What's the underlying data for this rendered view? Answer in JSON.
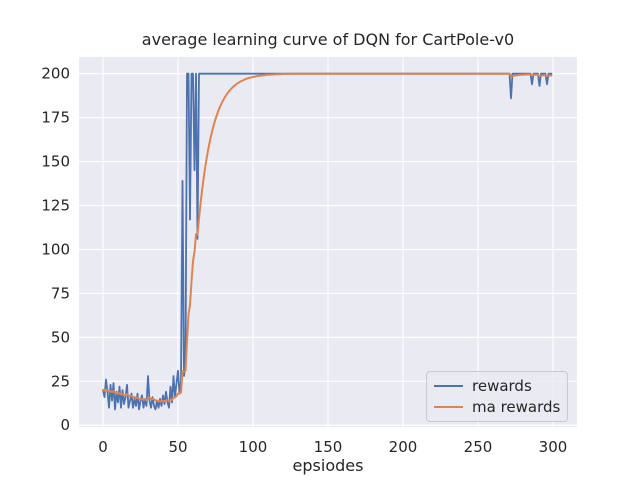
{
  "figure": {
    "background": "#ffffff"
  },
  "chart_data": {
    "type": "line",
    "title": "average learning curve of DQN for CartPole-v0",
    "xlabel": "epsiodes",
    "ylabel": "",
    "grid": true,
    "legend_position": "lower right",
    "axes_background": "#eaeaf2",
    "grid_color": "#ffffff",
    "text_color": "#262626",
    "xlim": [
      -16,
      316
    ],
    "ylim": [
      -1,
      209.5
    ],
    "xticks": [
      0,
      50,
      100,
      150,
      200,
      250,
      300
    ],
    "yticks": [
      0,
      25,
      50,
      75,
      100,
      125,
      150,
      175,
      200
    ],
    "x": {
      "name": "episode",
      "start": 0,
      "step": 1
    },
    "series": [
      {
        "name": "rewards",
        "color": "#4c72b0",
        "values": [
          20,
          16,
          26,
          19,
          10,
          23,
          14,
          24,
          9,
          19,
          13,
          22,
          10,
          20,
          12,
          16,
          23,
          10,
          14,
          18,
          10,
          15,
          11,
          18,
          9,
          14,
          17,
          10,
          15,
          11,
          28,
          14,
          10,
          16,
          11,
          9,
          14,
          10,
          15,
          11,
          17,
          12,
          19,
          13,
          10,
          22,
          13,
          28,
          16,
          24,
          31,
          18,
          25,
          139,
          28,
          35,
          200,
          200,
          117,
          200,
          200,
          145,
          200,
          106,
          200,
          200,
          200,
          200,
          200,
          200,
          200,
          200,
          200,
          200,
          200,
          200,
          200,
          200,
          200,
          200,
          200,
          200,
          200,
          200,
          200,
          200,
          200,
          200,
          200,
          200,
          200,
          200,
          200,
          200,
          200,
          200,
          200,
          200,
          200,
          200,
          200,
          200,
          200,
          200,
          200,
          200,
          200,
          200,
          200,
          200,
          200,
          200,
          200,
          200,
          200,
          200,
          200,
          200,
          200,
          200,
          200,
          200,
          200,
          200,
          200,
          200,
          200,
          200,
          200,
          200,
          200,
          200,
          200,
          200,
          200,
          200,
          200,
          200,
          200,
          200,
          200,
          200,
          200,
          200,
          200,
          200,
          200,
          200,
          200,
          200,
          200,
          200,
          200,
          200,
          200,
          200,
          200,
          200,
          200,
          200,
          200,
          200,
          200,
          200,
          200,
          200,
          200,
          200,
          200,
          200,
          200,
          200,
          200,
          200,
          200,
          200,
          200,
          200,
          200,
          200,
          200,
          200,
          200,
          200,
          200,
          200,
          200,
          200,
          200,
          200,
          200,
          200,
          200,
          200,
          200,
          200,
          200,
          200,
          200,
          200,
          200,
          200,
          200,
          200,
          200,
          200,
          200,
          200,
          200,
          200,
          200,
          200,
          200,
          200,
          200,
          200,
          200,
          200,
          200,
          200,
          200,
          200,
          200,
          200,
          200,
          200,
          200,
          200,
          200,
          200,
          200,
          200,
          200,
          200,
          200,
          200,
          200,
          200,
          200,
          200,
          200,
          200,
          200,
          200,
          200,
          200,
          200,
          200,
          200,
          200,
          200,
          200,
          200,
          200,
          200,
          200,
          200,
          200,
          200,
          200,
          200,
          200,
          200,
          200,
          200,
          200,
          200,
          200,
          200,
          200,
          200,
          200,
          186,
          200,
          200,
          200,
          200,
          200,
          200,
          200,
          200,
          200,
          200,
          200,
          200,
          200,
          194,
          200,
          200,
          200,
          200,
          193,
          200,
          200,
          200,
          200,
          194,
          200,
          200,
          200
        ]
      },
      {
        "name": "ma rewards",
        "color": "#dd8452",
        "values": [
          20.0,
          19.6,
          20.2,
          20.1,
          19.1,
          19.5,
          18.9,
          19.5,
          18.4,
          18.5,
          17.9,
          18.3,
          17.5,
          17.7,
          17.2,
          17.1,
          17.7,
          16.9,
          16.6,
          16.7,
          16.1,
          16.0,
          15.5,
          15.7,
          15.0,
          14.9,
          15.1,
          14.6,
          14.7,
          14.3,
          15.7,
          15.5,
          15.0,
          15.1,
          14.7,
          14.1,
          14.1,
          13.7,
          13.8,
          13.5,
          13.9,
          13.7,
          14.2,
          14.1,
          13.7,
          14.5,
          14.4,
          15.7,
          15.8,
          16.6,
          18.0,
          18.0,
          18.7,
          30.7,
          30.5,
          30.9,
          47.8,
          63.1,
          68.4,
          81.6,
          93.4,
          98.6,
          108.7,
          108.5,
          117.6,
          125.9,
          133.3,
          139.9,
          146.0,
          151.4,
          156.2,
          160.6,
          164.5,
          168.1,
          171.3,
          174.2,
          176.7,
          179.1,
          181.2,
          183.0,
          184.7,
          186.3,
          187.6,
          188.9,
          190.0,
          191.0,
          191.9,
          192.7,
          193.4,
          194.1,
          194.7,
          195.2,
          195.7,
          196.1,
          196.5,
          196.9,
          197.2,
          197.5,
          197.7,
          197.9,
          198.1,
          198.3,
          198.5,
          198.7,
          198.8,
          198.9,
          199.0,
          199.1,
          199.2,
          199.3,
          199.4,
          199.4,
          199.5,
          199.5,
          199.6,
          199.6,
          199.7,
          199.7,
          199.7,
          199.8,
          199.8,
          199.8,
          199.8,
          199.9,
          199.9,
          199.9,
          199.9,
          199.9,
          199.9,
          199.9,
          200.0,
          200.0,
          200.0,
          200.0,
          200.0,
          200.0,
          200.0,
          200.0,
          200.0,
          200.0,
          200.0,
          200.0,
          200.0,
          200.0,
          200.0,
          200.0,
          200.0,
          200.0,
          200.0,
          200.0,
          200.0,
          200.0,
          200.0,
          200.0,
          200.0,
          200.0,
          200.0,
          200.0,
          200.0,
          200.0,
          200.0,
          200.0,
          200.0,
          200.0,
          200.0,
          200.0,
          200.0,
          200.0,
          200.0,
          200.0,
          200.0,
          200.0,
          200.0,
          200.0,
          200.0,
          200.0,
          200.0,
          200.0,
          200.0,
          200.0,
          200.0,
          200.0,
          200.0,
          200.0,
          200.0,
          200.0,
          200.0,
          200.0,
          200.0,
          200.0,
          200.0,
          200.0,
          200.0,
          200.0,
          200.0,
          200.0,
          200.0,
          200.0,
          200.0,
          200.0,
          200.0,
          200.0,
          200.0,
          200.0,
          200.0,
          200.0,
          200.0,
          200.0,
          200.0,
          200.0,
          200.0,
          200.0,
          200.0,
          200.0,
          200.0,
          200.0,
          200.0,
          200.0,
          200.0,
          200.0,
          200.0,
          200.0,
          200.0,
          200.0,
          200.0,
          200.0,
          200.0,
          200.0,
          200.0,
          200.0,
          200.0,
          200.0,
          200.0,
          200.0,
          200.0,
          200.0,
          200.0,
          200.0,
          200.0,
          200.0,
          200.0,
          200.0,
          200.0,
          200.0,
          200.0,
          200.0,
          200.0,
          200.0,
          200.0,
          200.0,
          200.0,
          200.0,
          200.0,
          200.0,
          200.0,
          200.0,
          200.0,
          200.0,
          200.0,
          200.0,
          200.0,
          200.0,
          200.0,
          200.0,
          200.0,
          200.0,
          200.0,
          200.0,
          200.0,
          200.0,
          200.0,
          200.0,
          198.6,
          198.7,
          198.9,
          199.0,
          199.1,
          199.2,
          199.3,
          199.4,
          199.4,
          199.5,
          199.5,
          199.6,
          199.6,
          199.7,
          199.1,
          199.2,
          199.3,
          199.4,
          199.4,
          198.8,
          198.9,
          199.0,
          199.1,
          199.2,
          198.7,
          198.8,
          198.9,
          199.0
        ]
      }
    ]
  },
  "legend": {
    "items": [
      {
        "label": "rewards"
      },
      {
        "label": "ma rewards"
      }
    ]
  }
}
